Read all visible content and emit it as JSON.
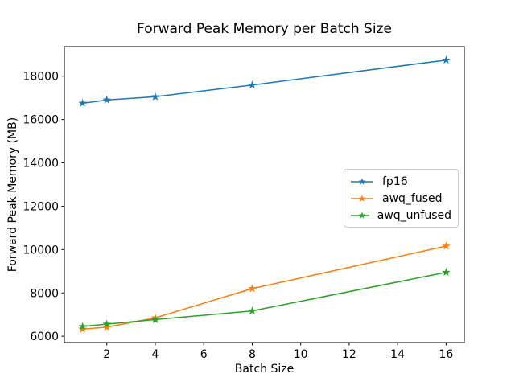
{
  "figure": {
    "background_color": "#ffffff",
    "text_color": "#000000",
    "axis_color": "#000000",
    "legend_border_color": "#cccccc"
  },
  "chart_data": {
    "type": "line",
    "title": "Forward Peak Memory per Batch Size",
    "xlabel": "Batch Size",
    "ylabel": "Forward Peak Memory (MB)",
    "x": [
      1,
      2,
      4,
      8,
      16
    ],
    "series": [
      {
        "name": "fp16",
        "color": "#1f77b4",
        "marker": "star",
        "values": [
          16750,
          16900,
          17050,
          17590,
          18740
        ]
      },
      {
        "name": "awq_fused",
        "color": "#ff7f0e",
        "marker": "star",
        "values": [
          6330,
          6420,
          6850,
          8200,
          10160
        ]
      },
      {
        "name": "awq_unfused",
        "color": "#2ca02c",
        "marker": "star",
        "values": [
          6450,
          6560,
          6770,
          7170,
          8950
        ]
      }
    ],
    "xlim": [
      0.25,
      16.75
    ],
    "ylim": [
      5710,
      19360
    ],
    "xticks": [
      2,
      4,
      6,
      8,
      10,
      12,
      14,
      16
    ],
    "yticks": [
      6000,
      8000,
      10000,
      12000,
      14000,
      16000,
      18000
    ],
    "grid": false,
    "legend_position": "center-right",
    "legend_entries": [
      "fp16",
      "awq_fused",
      "awq_unfused"
    ]
  }
}
